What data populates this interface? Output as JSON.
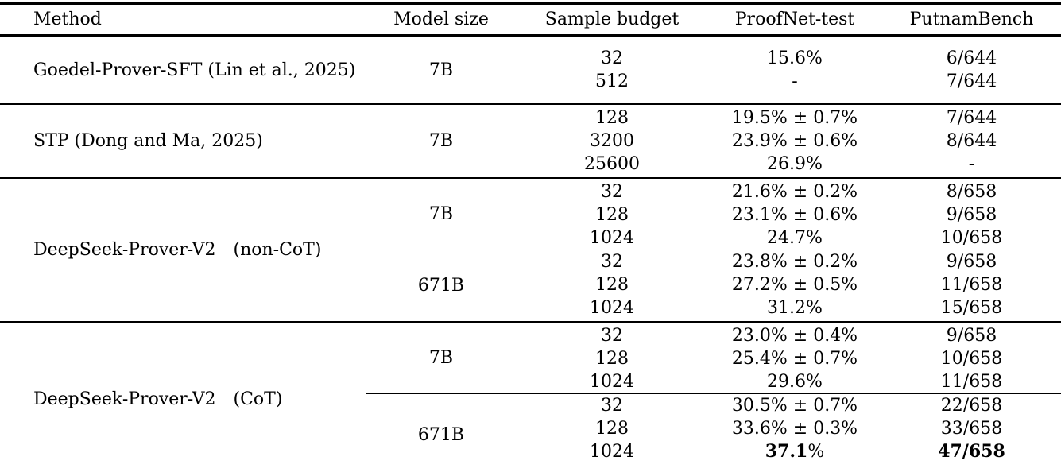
{
  "colors": {
    "background": "#ffffff",
    "text": "#000000",
    "rule": "#000000"
  },
  "table": {
    "columns": [
      {
        "key": "method",
        "label": "Method"
      },
      {
        "key": "model-size",
        "label": "Model size"
      },
      {
        "key": "sample-budget",
        "label": "Sample budget"
      },
      {
        "key": "proofnet",
        "label": "ProofNet-test"
      },
      {
        "key": "putnam",
        "label": "PutnamBench"
      }
    ],
    "groups": [
      {
        "method": "Goedel-Prover-SFT (Lin et al., 2025)",
        "subgroups": [
          {
            "model_size": "7B",
            "rows": [
              {
                "sample_budget": "32",
                "proofnet": "15.6%",
                "putnam": "6/644"
              },
              {
                "sample_budget": "512",
                "proofnet": "-",
                "putnam": "7/644"
              }
            ]
          }
        ]
      },
      {
        "method": "STP (Dong and Ma, 2025)",
        "subgroups": [
          {
            "model_size": "7B",
            "rows": [
              {
                "sample_budget": "128",
                "proofnet": "19.5% ± 0.7%",
                "putnam": "7/644"
              },
              {
                "sample_budget": "3200",
                "proofnet": "23.9% ± 0.6%",
                "putnam": "8/644"
              },
              {
                "sample_budget": "25600",
                "proofnet": "26.9%",
                "putnam": "-"
              }
            ]
          }
        ]
      },
      {
        "method": "DeepSeek-Prover-V2 (non-CoT)",
        "subgroups": [
          {
            "model_size": "7B",
            "rows": [
              {
                "sample_budget": "32",
                "proofnet": "21.6% ± 0.2%",
                "putnam": "8/658"
              },
              {
                "sample_budget": "128",
                "proofnet": "23.1% ± 0.6%",
                "putnam": "9/658"
              },
              {
                "sample_budget": "1024",
                "proofnet": "24.7%",
                "putnam": "10/658"
              }
            ]
          },
          {
            "model_size": "671B",
            "rows": [
              {
                "sample_budget": "32",
                "proofnet": "23.8% ± 0.2%",
                "putnam": "9/658"
              },
              {
                "sample_budget": "128",
                "proofnet": "27.2% ± 0.5%",
                "putnam": "11/658"
              },
              {
                "sample_budget": "1024",
                "proofnet": "31.2%",
                "putnam": "15/658"
              }
            ]
          }
        ]
      },
      {
        "method": "DeepSeek-Prover-V2 (CoT)",
        "subgroups": [
          {
            "model_size": "7B",
            "rows": [
              {
                "sample_budget": "32",
                "proofnet": "23.0% ± 0.4%",
                "putnam": "9/658"
              },
              {
                "sample_budget": "128",
                "proofnet": "25.4% ± 0.7%",
                "putnam": "10/658"
              },
              {
                "sample_budget": "1024",
                "proofnet": "29.6%",
                "putnam": "11/658"
              }
            ]
          },
          {
            "model_size": "671B",
            "rows": [
              {
                "sample_budget": "32",
                "proofnet": "30.5% ± 0.7%",
                "putnam": "22/658"
              },
              {
                "sample_budget": "128",
                "proofnet": "33.6% ± 0.3%",
                "putnam": "33/658"
              },
              {
                "sample_budget": "1024",
                "proofnet": {
                  "bold": "37.1",
                  "regular": "%"
                },
                "putnam": {
                  "bold": "47/658"
                }
              }
            ]
          }
        ]
      }
    ]
  }
}
